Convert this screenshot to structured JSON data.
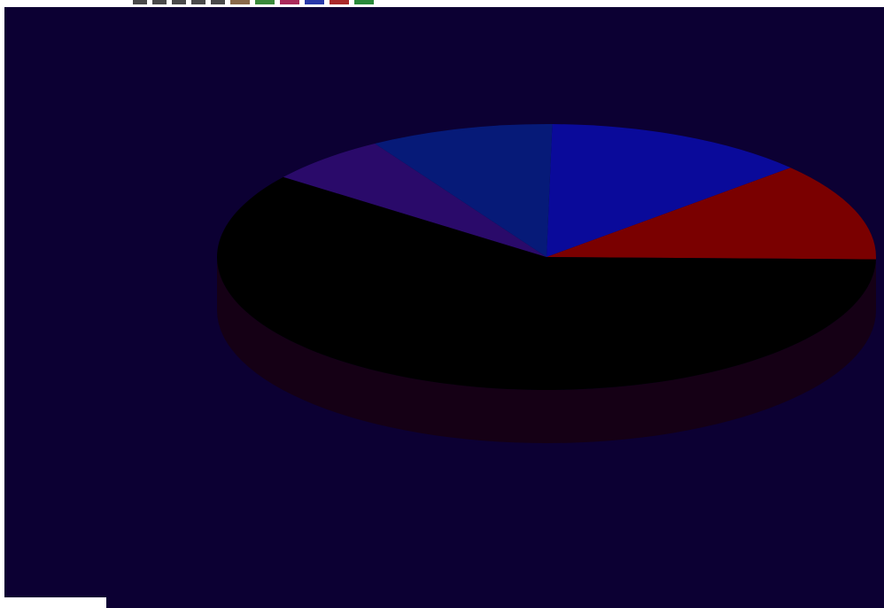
{
  "chart_data": {
    "type": "pie",
    "style": "3d",
    "slices": [
      {
        "label": "",
        "value": 13,
        "color": "#0a0a9a"
      },
      {
        "label": "",
        "value": 12,
        "color": "#7a0000"
      },
      {
        "label": "",
        "value": 60,
        "color": "#000000"
      },
      {
        "label": "",
        "value": 6,
        "color": "#2a0a6a"
      },
      {
        "label": "",
        "value": 9,
        "color": "#061a78"
      }
    ],
    "title": "",
    "legend": "none"
  },
  "colors": {
    "background": "#0c0033",
    "side_shade": "#150015"
  },
  "toolbar": {
    "icons": [
      "toolbar-icon",
      "toolbar-icon",
      "toolbar-icon",
      "toolbar-icon",
      "toolbar-icon"
    ],
    "palette": [
      "#8a6a4a",
      "#3a8a3a",
      "#aa2a5a",
      "#2a3aaa",
      "#aa2a2a",
      "#2a8a3a"
    ]
  }
}
